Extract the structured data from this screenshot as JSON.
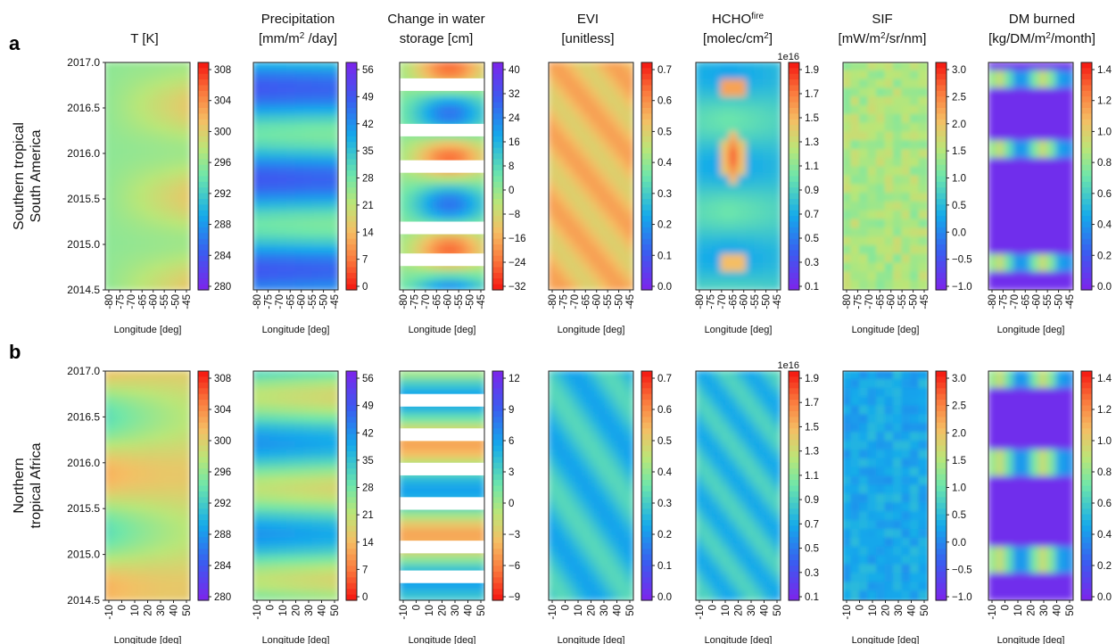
{
  "chart_data": {
    "type": "heatmap",
    "panel_headers": [
      {
        "line1": "T [K]",
        "line2": ""
      },
      {
        "line1": "Precipitation",
        "line2": "[mm/m",
        "sup": "2",
        "line2b": " /day]"
      },
      {
        "line1": "Change in water",
        "line2": "storage [cm]"
      },
      {
        "line1": "EVI",
        "line2": "[unitless]"
      },
      {
        "line1": "HCHO",
        "sup1": "fire",
        "line2": "[molec/cm",
        "sup": "2",
        "line2b": "]"
      },
      {
        "line1": "SIF",
        "line2": "[mW/m",
        "sup": "2",
        "line2b": "/sr/nm]"
      },
      {
        "line1": "DM burned",
        "line2": "[kg/DM/m",
        "sup": "2",
        "line2b": "/month]"
      }
    ],
    "rows": [
      {
        "label": "a",
        "title_line1": "Southern tropical",
        "title_line2": "South America",
        "y_ticks": [
          "2017.0",
          "2016.5",
          "2016.0",
          "2015.5",
          "2015.0",
          "2014.5"
        ],
        "x_ticks": [
          "-80",
          "-75",
          "-70",
          "-65",
          "-60",
          "-55",
          "-50",
          "-45"
        ],
        "xlabel": "Longitude [deg]",
        "colorbars": [
          {
            "ticks": [
              "308",
              "304",
              "300",
              "296",
              "292",
              "288",
              "284",
              "280"
            ],
            "cmap": "rainbow_r",
            "exponent": ""
          },
          {
            "ticks": [
              "56",
              "49",
              "42",
              "35",
              "28",
              "21",
              "14",
              "7",
              "0"
            ],
            "cmap": "rainbow",
            "exponent": ""
          },
          {
            "ticks": [
              "40",
              "32",
              "24",
              "16",
              "8",
              "0",
              "−8",
              "−16",
              "−24",
              "−32"
            ],
            "cmap": "rainbow",
            "exponent": ""
          },
          {
            "ticks": [
              "0.7",
              "0.6",
              "0.5",
              "0.4",
              "0.3",
              "0.2",
              "0.1",
              "0.0"
            ],
            "cmap": "rainbow_r",
            "exponent": ""
          },
          {
            "ticks": [
              "1.9",
              "1.7",
              "1.5",
              "1.3",
              "1.1",
              "0.9",
              "0.7",
              "0.5",
              "0.3",
              "0.1"
            ],
            "cmap": "rainbow_r",
            "exponent": "1e16"
          },
          {
            "ticks": [
              "3.0",
              "2.5",
              "2.0",
              "1.5",
              "1.0",
              "0.5",
              "0.0",
              "−0.5",
              "−1.0"
            ],
            "cmap": "rainbow_r",
            "exponent": ""
          },
          {
            "ticks": [
              "1.4",
              "1.2",
              "1.0",
              "0.8",
              "0.6",
              "0.4",
              "0.2",
              "0.0"
            ],
            "cmap": "rainbow_r",
            "exponent": ""
          }
        ]
      },
      {
        "label": "b",
        "title_line1": "Northern",
        "title_line2": "tropical Africa",
        "y_ticks": [
          "2017.0",
          "2016.5",
          "2016.0",
          "2015.5",
          "2015.0",
          "2014.5"
        ],
        "x_ticks": [
          "-10",
          "0",
          "10",
          "20",
          "30",
          "40",
          "50"
        ],
        "xlabel": "Longitude [deg]",
        "colorbars": [
          {
            "ticks": [
              "308",
              "304",
              "300",
              "296",
              "292",
              "288",
              "284",
              "280"
            ],
            "cmap": "rainbow_r",
            "exponent": ""
          },
          {
            "ticks": [
              "56",
              "49",
              "42",
              "35",
              "28",
              "21",
              "14",
              "7",
              "0"
            ],
            "cmap": "rainbow",
            "exponent": ""
          },
          {
            "ticks": [
              "12",
              "9",
              "6",
              "3",
              "0",
              "−3",
              "−6",
              "−9"
            ],
            "cmap": "rainbow",
            "exponent": ""
          },
          {
            "ticks": [
              "0.7",
              "0.6",
              "0.5",
              "0.4",
              "0.3",
              "0.2",
              "0.1",
              "0.0"
            ],
            "cmap": "rainbow_r",
            "exponent": ""
          },
          {
            "ticks": [
              "1.9",
              "1.7",
              "1.5",
              "1.3",
              "1.1",
              "0.9",
              "0.7",
              "0.5",
              "0.3",
              "0.1"
            ],
            "cmap": "rainbow_r",
            "exponent": "1e16"
          },
          {
            "ticks": [
              "3.0",
              "2.5",
              "2.0",
              "1.5",
              "1.0",
              "0.5",
              "0.0",
              "−0.5",
              "−1.0"
            ],
            "cmap": "rainbow_r",
            "exponent": ""
          },
          {
            "ticks": [
              "1.4",
              "1.2",
              "1.0",
              "0.8",
              "0.6",
              "0.4",
              "0.2",
              "0.0"
            ],
            "cmap": "rainbow_r",
            "exponent": ""
          }
        ]
      }
    ],
    "panel_fields": [
      {
        "row": "a",
        "panel": "T [K]",
        "dominant_values": "296-300 K, warmer (~302 K) toward east (-50 to -45) and mid 2016"
      },
      {
        "row": "a",
        "panel": "Precipitation",
        "dominant_values": "peaks ~42-49 in wet seasons (early 2015, early 2016), ~20 in dry seasons"
      },
      {
        "row": "a",
        "panel": "Change in water storage",
        "dominant_values": "negative (red) ~-30 in late 2015 and 2016, positive (blue) ~+20 in early 2015"
      },
      {
        "row": "a",
        "panel": "EVI",
        "dominant_values": "0.4-0.6, mostly orange"
      },
      {
        "row": "a",
        "panel": "HCHO fire",
        "dominant_values": "background ~0.5-0.9e16, fire peaks ~1.9e16 at -65 in late 2015"
      },
      {
        "row": "a",
        "panel": "SIF",
        "dominant_values": "0.5-1.5 with noise"
      },
      {
        "row": "a",
        "panel": "DM burned",
        "dominant_values": "near 0 background, peaks ~0.6-1.2 in fire seasons"
      },
      {
        "row": "b",
        "panel": "T [K]",
        "dominant_values": "296-304 K, warm peaks ~304 K spring 2015 and 2016 near 0 deg"
      },
      {
        "row": "b",
        "panel": "Precipitation",
        "dominant_values": "~35-42 in winter, ~14-21 peaks in summer"
      },
      {
        "row": "b",
        "panel": "Change in water storage",
        "dominant_values": "-3 to +6, blue at 2014.5 ~-9"
      },
      {
        "row": "b",
        "panel": "EVI",
        "dominant_values": "0.2-0.4"
      },
      {
        "row": "b",
        "panel": "HCHO fire",
        "dominant_values": "0.5-1.1e16"
      },
      {
        "row": "b",
        "panel": "SIF",
        "dominant_values": "0.0-1.0"
      },
      {
        "row": "b",
        "panel": "DM burned",
        "dominant_values": "near 0 background, peaks ~1.0-1.4 at 2016.0, 2015.0"
      }
    ]
  }
}
